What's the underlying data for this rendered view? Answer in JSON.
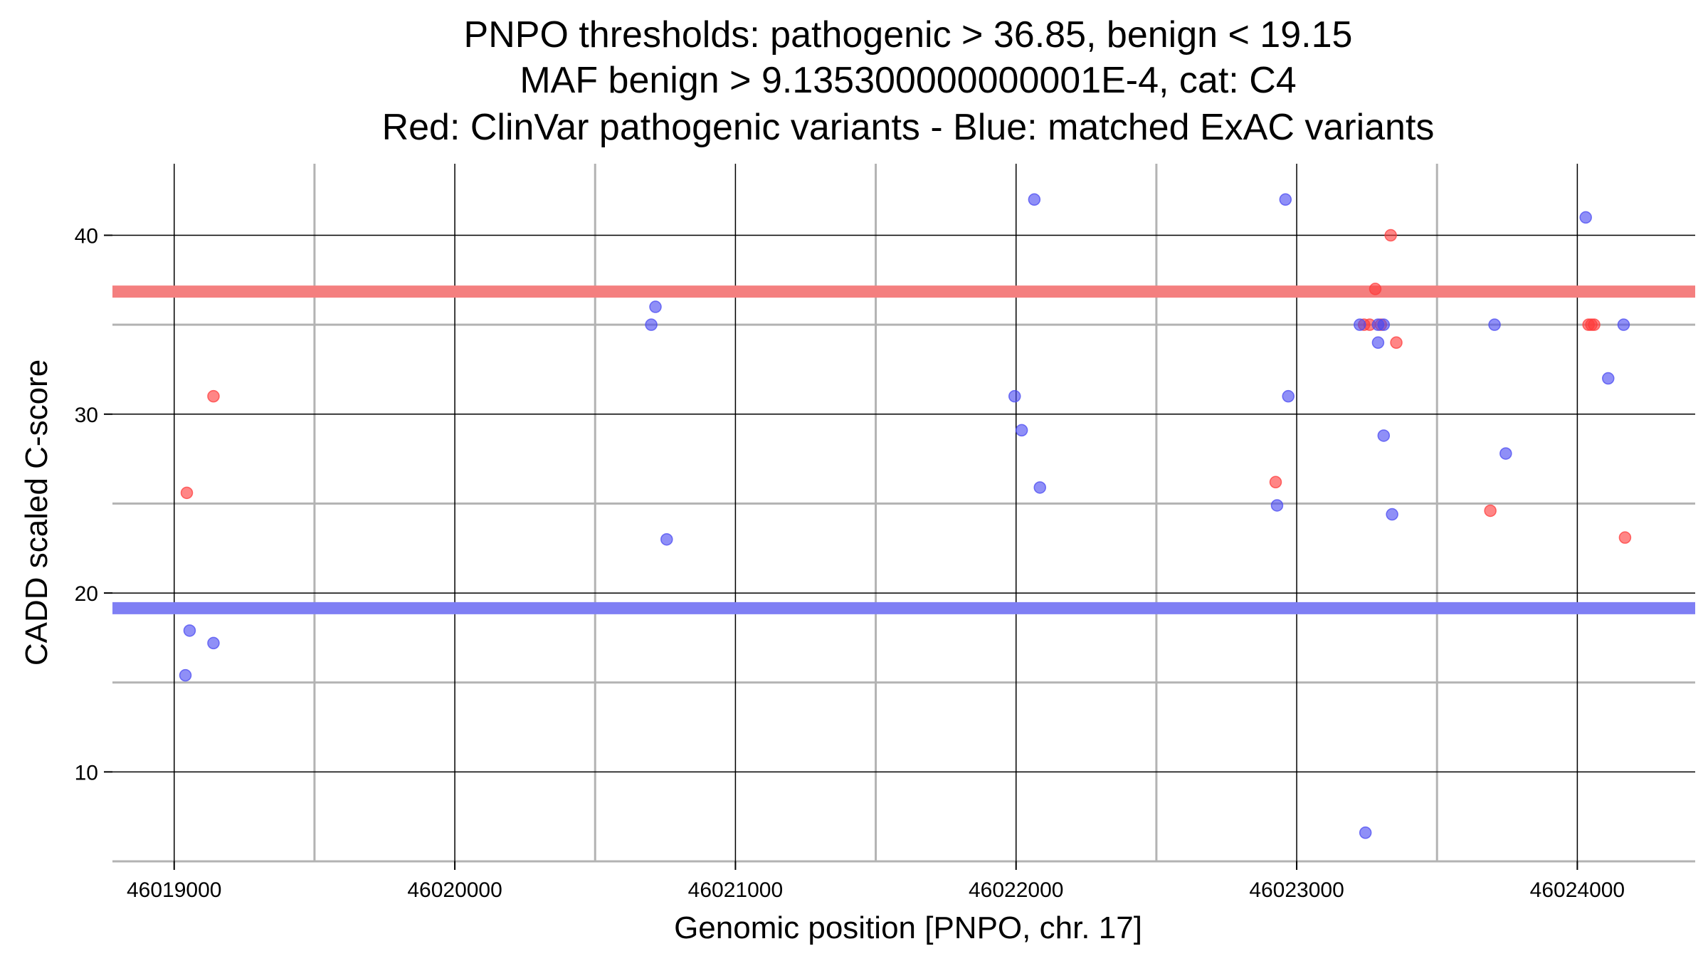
{
  "chart_data": {
    "type": "scatter",
    "title_lines": [
      "PNPO thresholds: pathogenic > 36.85, benign < 19.15",
      "MAF benign > 9.135300000000001E-4, cat: C4",
      "Red: ClinVar pathogenic variants - Blue: matched ExAC variants"
    ],
    "xlabel": "Genomic position [PNPO, chr. 17]",
    "ylabel": "CADD scaled C-score",
    "xlim": [
      46018780,
      46024420
    ],
    "ylim": [
      5,
      44
    ],
    "x_ticks": [
      46019000,
      46020000,
      46021000,
      46022000,
      46023000,
      46024000
    ],
    "x_tick_labels": [
      "46019000",
      "46020000",
      "46021000",
      "46022000",
      "46023000",
      "46024000"
    ],
    "y_ticks": [
      10,
      20,
      30,
      40
    ],
    "y_tick_labels": [
      "10",
      "20",
      "30",
      "40"
    ],
    "x_minor_grid": [
      46019500,
      46020500,
      46021500,
      46022500,
      46023500
    ],
    "y_minor_grid": [
      5,
      15,
      25,
      35
    ],
    "grid": true,
    "thresholds": [
      {
        "name": "pathogenic",
        "value": 36.85,
        "color": "#f47f7f"
      },
      {
        "name": "benign",
        "value": 19.15,
        "color": "#7f7ff4"
      }
    ],
    "series": [
      {
        "name": "ClinVar pathogenic variants",
        "color": "#ff3b3b",
        "points": [
          [
            46019140,
            31.0
          ],
          [
            46019045,
            25.6
          ],
          [
            46022925,
            26.2
          ],
          [
            46023240,
            35.0
          ],
          [
            46023260,
            35.0
          ],
          [
            46023280,
            37.0
          ],
          [
            46023300,
            35.0
          ],
          [
            46023335,
            40.0
          ],
          [
            46023355,
            34.0
          ],
          [
            46023690,
            24.6
          ],
          [
            46024040,
            35.0
          ],
          [
            46024050,
            35.0
          ],
          [
            46024060,
            35.0
          ],
          [
            46024170,
            23.1
          ]
        ]
      },
      {
        "name": "matched ExAC variants",
        "color": "#4a4af2",
        "points": [
          [
            46019055,
            17.9
          ],
          [
            46019140,
            17.2
          ],
          [
            46019040,
            15.4
          ],
          [
            46020715,
            36.0
          ],
          [
            46020700,
            35.0
          ],
          [
            46020755,
            23.0
          ],
          [
            46021995,
            31.0
          ],
          [
            46022020,
            29.1
          ],
          [
            46022065,
            42.0
          ],
          [
            46022085,
            25.9
          ],
          [
            46022960,
            42.0
          ],
          [
            46022970,
            31.0
          ],
          [
            46022930,
            24.9
          ],
          [
            46023225,
            35.0
          ],
          [
            46023290,
            35.0
          ],
          [
            46023310,
            35.0
          ],
          [
            46023290,
            34.0
          ],
          [
            46023310,
            28.8
          ],
          [
            46023340,
            24.4
          ],
          [
            46023245,
            6.6
          ],
          [
            46023705,
            35.0
          ],
          [
            46023745,
            27.8
          ],
          [
            46024030,
            41.0
          ],
          [
            46024165,
            35.0
          ],
          [
            46024110,
            32.0
          ]
        ]
      }
    ]
  }
}
